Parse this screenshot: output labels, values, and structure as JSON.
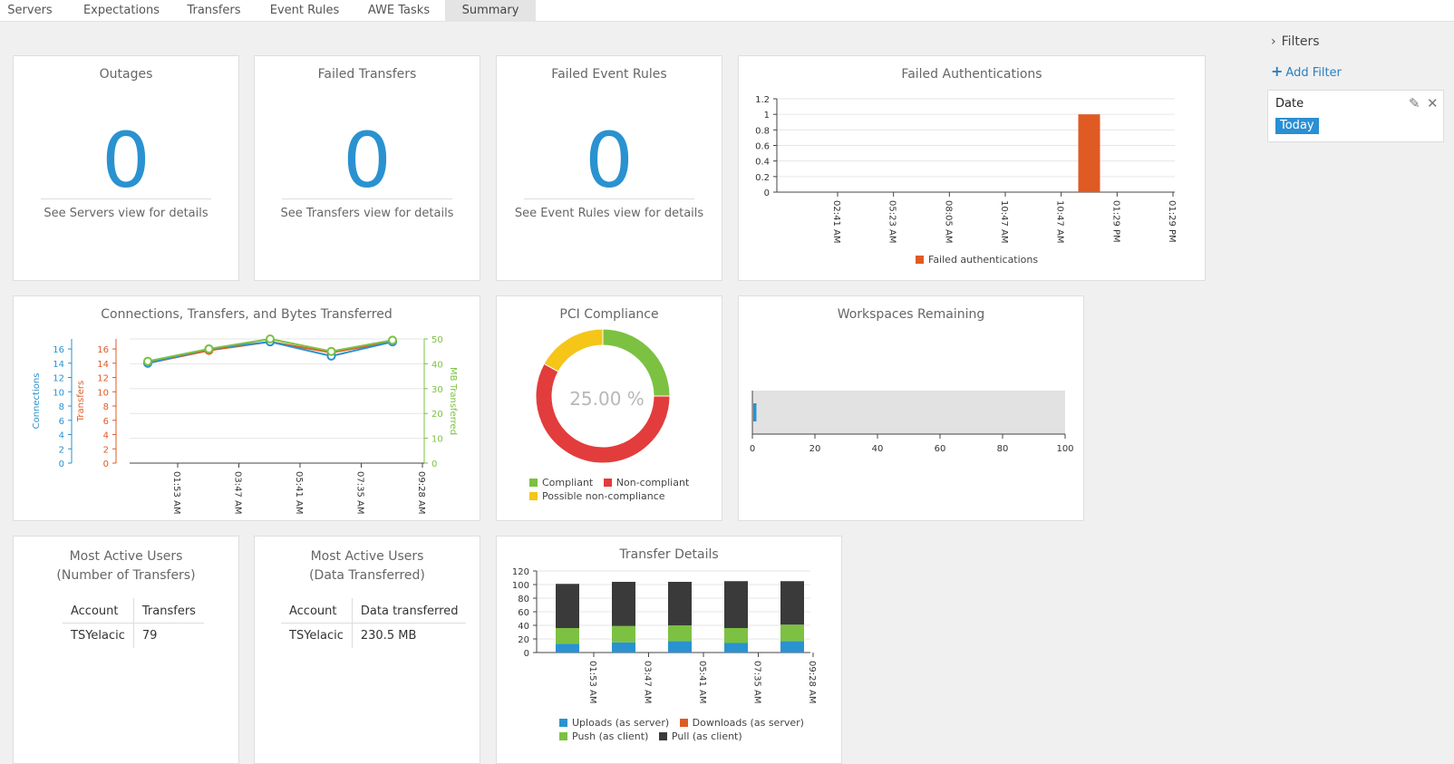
{
  "tabs": [
    {
      "label": "Servers",
      "active": false
    },
    {
      "label": "Expectations",
      "active": false
    },
    {
      "label": "Transfers",
      "active": false
    },
    {
      "label": "Event Rules",
      "active": false
    },
    {
      "label": "AWE Tasks",
      "active": false
    },
    {
      "label": "Summary",
      "active": true
    }
  ],
  "outages": {
    "title": "Outages",
    "value": "0",
    "details": "See Servers view for details"
  },
  "failed_transfers": {
    "title": "Failed Transfers",
    "value": "0",
    "details": "See Transfers view for details"
  },
  "failed_event_rules": {
    "title": "Failed Event Rules",
    "value": "0",
    "details": "See Event Rules view for details"
  },
  "failed_auth": {
    "title": "Failed Authentications",
    "legend": "Failed authentications"
  },
  "connections": {
    "title": "Connections, Transfers, and Bytes Transferred"
  },
  "pci": {
    "title": "PCI Compliance",
    "center_label": "25.00 %",
    "legend": [
      "Compliant",
      "Non-compliant",
      "Possible non-compliance"
    ]
  },
  "workspaces": {
    "title": "Workspaces Remaining"
  },
  "most_active_transfers": {
    "title_line1": "Most Active Users",
    "title_line2": "(Number of Transfers)",
    "headers": [
      "Account",
      "Transfers"
    ],
    "rows": [
      {
        "account": "TSYelacic",
        "value": "79"
      }
    ]
  },
  "most_active_data": {
    "title_line1": "Most Active Users",
    "title_line2": "(Data Transferred)",
    "headers": [
      "Account",
      "Data transferred"
    ],
    "rows": [
      {
        "account": "TSYelacic",
        "value": "230.5 MB"
      }
    ]
  },
  "transfer_details": {
    "title": "Transfer Details",
    "legend": [
      "Uploads (as server)",
      "Downloads (as server)",
      "Push (as client)",
      "Pull (as client)"
    ]
  },
  "filters": {
    "heading": "Filters",
    "add_filter": "Add Filter",
    "card_title": "Date",
    "card_value": "Today"
  },
  "colors": {
    "accent_blue": "#2a92d0",
    "orange": "#e05a24",
    "green": "#7cc142",
    "red": "#e33c3c",
    "yellow": "#f5c518",
    "dark": "#3a3a3a"
  },
  "chart_data": [
    {
      "id": "failed-authentications",
      "type": "bar",
      "title": "Failed Authentications",
      "x": [
        "02:41 AM",
        "05:23 AM",
        "08:05 AM",
        "10:47 AM",
        "10:47 AM",
        "01:29 PM",
        "01:29 PM"
      ],
      "ylim": [
        0,
        1.2
      ],
      "yticks": [
        "1.2",
        "1",
        "0.8",
        "0.6",
        "0.4",
        "0.2",
        "0"
      ],
      "series": [
        {
          "name": "Failed authentications",
          "bars": [
            {
              "x_between": [
                "10:47 AM",
                "01:29 PM"
              ],
              "value": 1
            }
          ]
        }
      ]
    },
    {
      "id": "connections-transfers-bytes",
      "type": "line",
      "title": "Connections, Transfers, and Bytes Transferred",
      "x": [
        "01:53 AM",
        "03:47 AM",
        "05:41 AM",
        "07:35 AM",
        "09:28 AM"
      ],
      "y_axes": [
        {
          "label": "Connections",
          "ticks": [
            "16",
            "14",
            "12",
            "10",
            "8",
            "6",
            "4",
            "2",
            "0"
          ],
          "ylim": [
            0,
            17.4
          ]
        },
        {
          "label": "Transfers",
          "ticks": [
            "16",
            "14",
            "12",
            "10",
            "8",
            "6",
            "4",
            "2",
            "0"
          ],
          "ylim": [
            0,
            17.4
          ]
        },
        {
          "label": "MB Transferred",
          "ticks": [
            "50",
            "40",
            "30",
            "20",
            "10",
            "0"
          ],
          "ylim": [
            0,
            50
          ]
        }
      ],
      "series": [
        {
          "name": "Connections",
          "axis": 0,
          "points": [
            14,
            16,
            17,
            15,
            17
          ]
        },
        {
          "name": "Transfers",
          "axis": 1,
          "points": [
            14,
            15.8,
            17,
            15.5,
            17
          ]
        },
        {
          "name": "MB Transferred",
          "axis": 2,
          "points": [
            41,
            46,
            50,
            45,
            49.5
          ]
        }
      ]
    },
    {
      "id": "pci-compliance",
      "type": "pie",
      "title": "PCI Compliance",
      "slices": [
        {
          "name": "Compliant",
          "value": 25
        },
        {
          "name": "Non-compliant",
          "value": 58
        },
        {
          "name": "Possible non-compliance",
          "value": 17
        }
      ]
    },
    {
      "id": "workspaces-remaining",
      "type": "bar",
      "title": "Workspaces Remaining",
      "xlim": [
        0,
        100
      ],
      "xticks": [
        "0",
        "20",
        "40",
        "60",
        "80",
        "100"
      ],
      "values": [
        1
      ]
    },
    {
      "id": "transfer-details",
      "type": "bar",
      "title": "Transfer Details",
      "x": [
        "01:53 AM",
        "03:47 AM",
        "05:41 AM",
        "07:35 AM",
        "09:28 AM"
      ],
      "ylim": [
        0,
        120
      ],
      "yticks": [
        "120",
        "100",
        "80",
        "60",
        "40",
        "20",
        "0"
      ],
      "stacked": true,
      "series": [
        {
          "name": "Uploads (as server)",
          "values": [
            13,
            15,
            17,
            14,
            17
          ]
        },
        {
          "name": "Downloads (as server)",
          "values": [
            0,
            0,
            0,
            0,
            0
          ]
        },
        {
          "name": "Push (as client)",
          "values": [
            23,
            24,
            23,
            22,
            24
          ]
        },
        {
          "name": "Pull (as client)",
          "values": [
            65,
            65,
            64,
            69,
            64
          ]
        }
      ]
    }
  ]
}
